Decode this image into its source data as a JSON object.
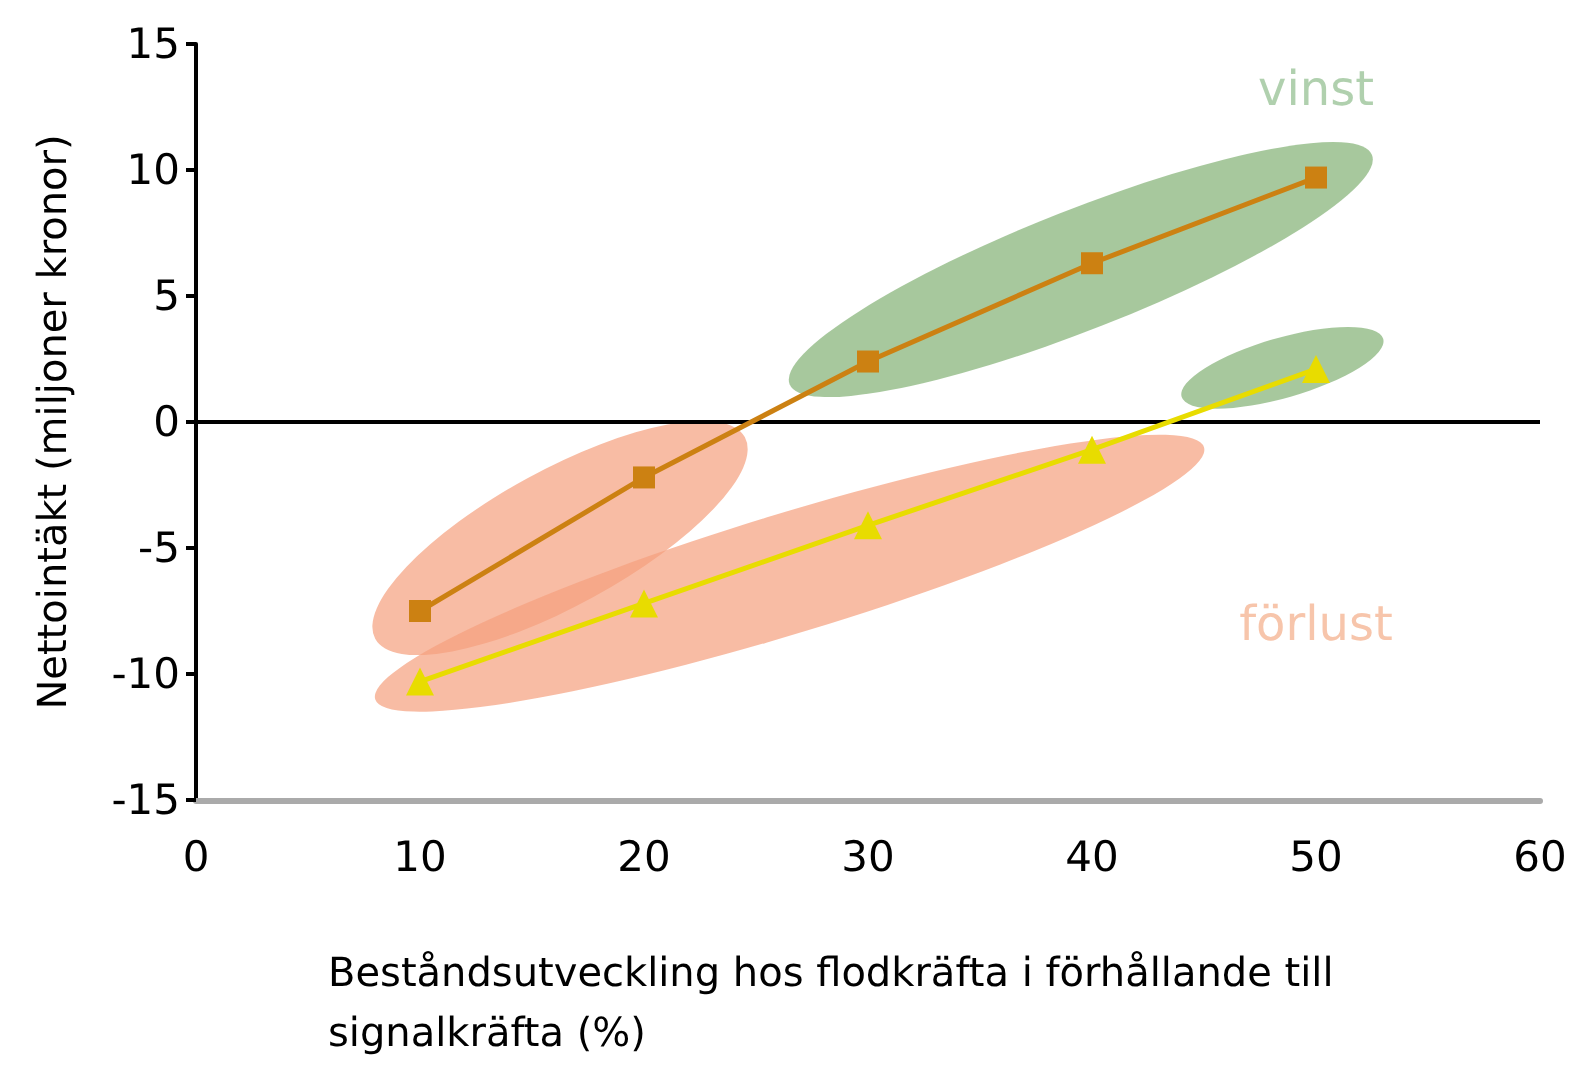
{
  "chart_data": {
    "type": "line",
    "xlabel": "Beståndsutveckling hos flodkräfta i förhållande till signalkräfta (%)",
    "ylabel": "Nettointäkt (miljoner kronor)",
    "x": [
      10,
      20,
      30,
      40,
      50
    ],
    "series": [
      {
        "color": "#cc8112",
        "values": [
          -7.5,
          -2.2,
          2.4,
          6.3,
          9.7
        ],
        "marker": "square"
      },
      {
        "color": "#e8dc00",
        "values": [
          -10.3,
          -7.2,
          -4.1,
          -1.1,
          2.1
        ],
        "marker": "triangle"
      }
    ],
    "xlim": [
      0,
      60
    ],
    "xticks": [
      0,
      10,
      20,
      30,
      40,
      50,
      60
    ],
    "ylim": [
      -15,
      15
    ],
    "yticks": [
      -15,
      -10,
      -5,
      0,
      5,
      10,
      15
    ],
    "ref_lines": [
      {
        "axis": "y",
        "value": 0,
        "color": "#000000"
      }
    ],
    "annotations": [
      "vinst",
      "förlust"
    ],
    "grid": false,
    "line_style": "solid"
  }
}
